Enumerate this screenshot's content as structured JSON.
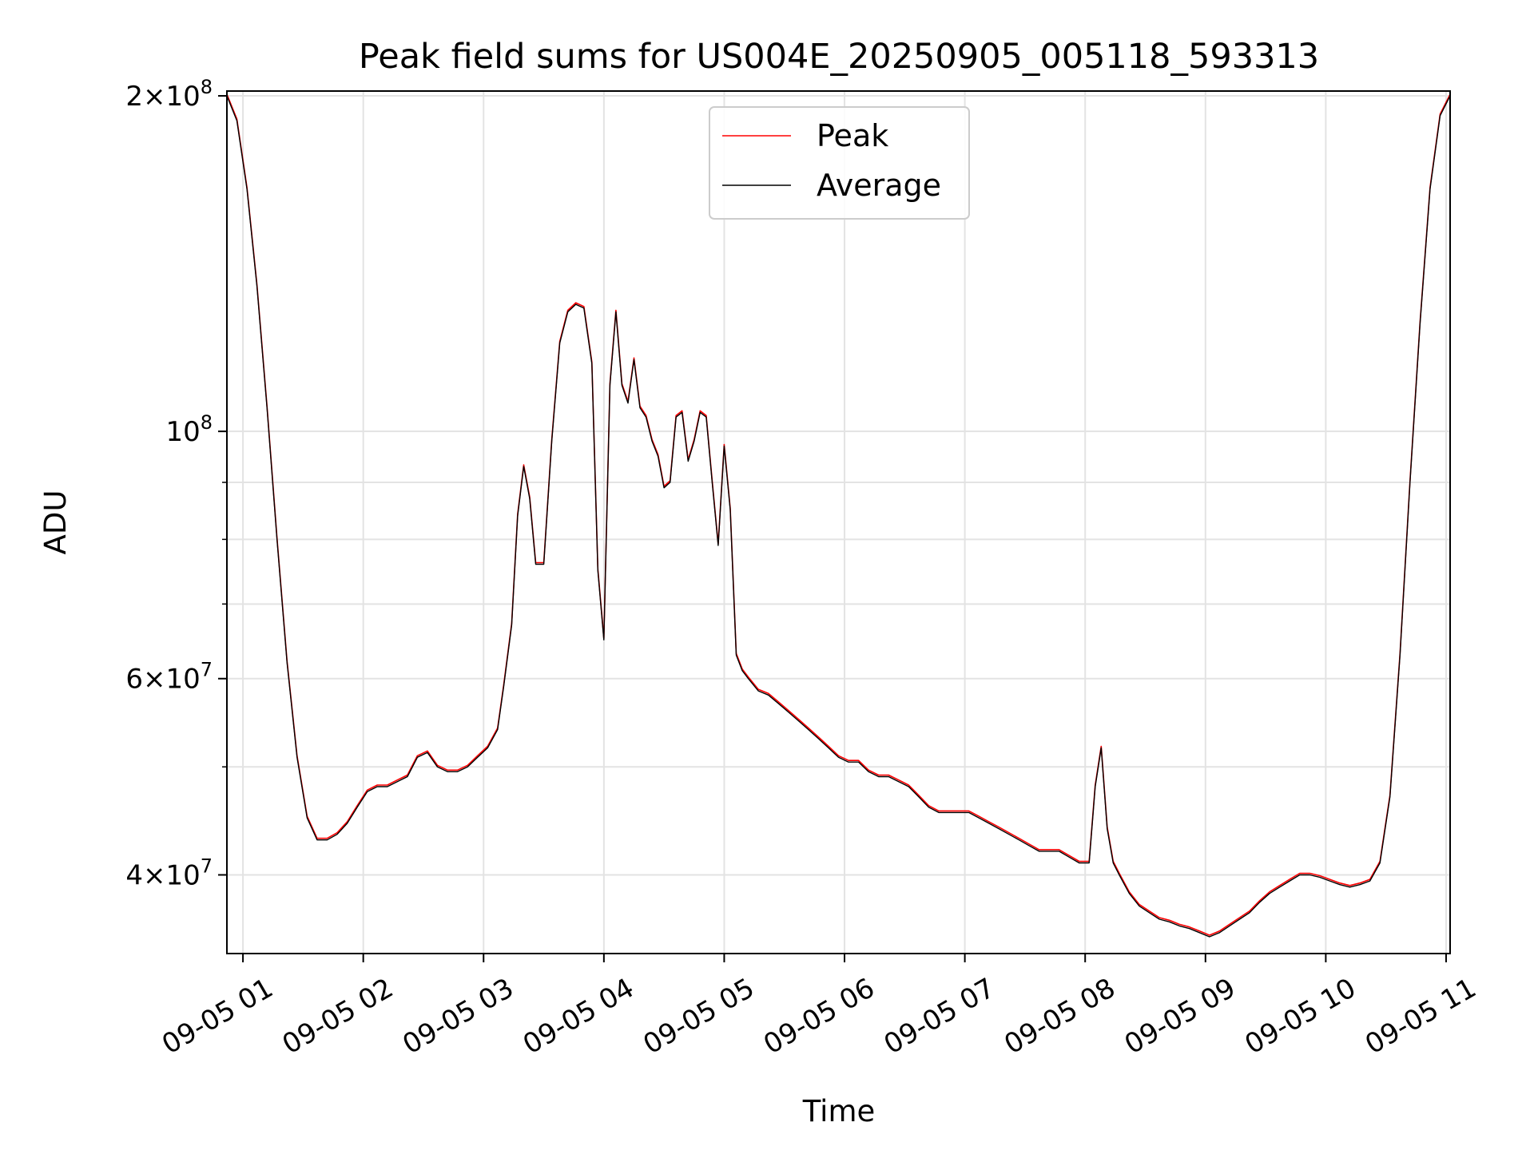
{
  "chart_data": {
    "type": "line",
    "title": "Peak field sums for US004E_20250905_005118_593313",
    "xlabel": "Time",
    "ylabel": "ADU",
    "yscale": "log",
    "ylim": [
      34000000,
      202000000
    ],
    "xlim": [
      "09-05 00:52",
      "09-05 11:02"
    ],
    "grid": true,
    "legend_position": "top-center",
    "x_ticks": [
      {
        "value": "09-05 01:00",
        "label": "09-05 01"
      },
      {
        "value": "09-05 02:00",
        "label": "09-05 02"
      },
      {
        "value": "09-05 03:00",
        "label": "09-05 03"
      },
      {
        "value": "09-05 04:00",
        "label": "09-05 04"
      },
      {
        "value": "09-05 05:00",
        "label": "09-05 05"
      },
      {
        "value": "09-05 06:00",
        "label": "09-05 06"
      },
      {
        "value": "09-05 07:00",
        "label": "09-05 07"
      },
      {
        "value": "09-05 08:00",
        "label": "09-05 08"
      },
      {
        "value": "09-05 09:00",
        "label": "09-05 09"
      },
      {
        "value": "09-05 10:00",
        "label": "09-05 10"
      },
      {
        "value": "09-05 11:00",
        "label": "09-05 11"
      }
    ],
    "y_ticks_major": [
      {
        "value": 40000000,
        "mant": "4",
        "exp": "7"
      },
      {
        "value": 60000000,
        "mant": "6",
        "exp": "7"
      },
      {
        "value": 100000000,
        "mant": "",
        "exp": "8"
      },
      {
        "value": 200000000,
        "mant": "2",
        "exp": "8"
      }
    ],
    "y_ticks_minor": [
      50000000,
      70000000,
      80000000,
      90000000
    ],
    "series": [
      {
        "name": "Peak",
        "color": "#ff0000"
      },
      {
        "name": "Average",
        "color": "#000000"
      }
    ],
    "x": [
      "09-05 00:52",
      "09-05 00:57",
      "09-05 01:02",
      "09-05 01:07",
      "09-05 01:12",
      "09-05 01:17",
      "09-05 01:22",
      "09-05 01:27",
      "09-05 01:32",
      "09-05 01:37",
      "09-05 01:42",
      "09-05 01:47",
      "09-05 01:52",
      "09-05 01:57",
      "09-05 02:02",
      "09-05 02:07",
      "09-05 02:12",
      "09-05 02:17",
      "09-05 02:22",
      "09-05 02:27",
      "09-05 02:32",
      "09-05 02:37",
      "09-05 02:42",
      "09-05 02:47",
      "09-05 02:52",
      "09-05 02:57",
      "09-05 03:02",
      "09-05 03:07",
      "09-05 03:10",
      "09-05 03:14",
      "09-05 03:17",
      "09-05 03:20",
      "09-05 03:23",
      "09-05 03:26",
      "09-05 03:30",
      "09-05 03:34",
      "09-05 03:38",
      "09-05 03:42",
      "09-05 03:46",
      "09-05 03:50",
      "09-05 03:54",
      "09-05 03:57",
      "09-05 04:00",
      "09-05 04:03",
      "09-05 04:06",
      "09-05 04:09",
      "09-05 04:12",
      "09-05 04:15",
      "09-05 04:18",
      "09-05 04:21",
      "09-05 04:24",
      "09-05 04:27",
      "09-05 04:30",
      "09-05 04:33",
      "09-05 04:36",
      "09-05 04:39",
      "09-05 04:42",
      "09-05 04:45",
      "09-05 04:48",
      "09-05 04:51",
      "09-05 04:54",
      "09-05 04:57",
      "09-05 05:00",
      "09-05 05:03",
      "09-05 05:06",
      "09-05 05:09",
      "09-05 05:12",
      "09-05 05:17",
      "09-05 05:22",
      "09-05 05:27",
      "09-05 05:32",
      "09-05 05:37",
      "09-05 05:42",
      "09-05 05:47",
      "09-05 05:52",
      "09-05 05:57",
      "09-05 06:02",
      "09-05 06:07",
      "09-05 06:12",
      "09-05 06:17",
      "09-05 06:22",
      "09-05 06:27",
      "09-05 06:32",
      "09-05 06:37",
      "09-05 06:42",
      "09-05 06:47",
      "09-05 06:52",
      "09-05 06:57",
      "09-05 07:02",
      "09-05 07:07",
      "09-05 07:12",
      "09-05 07:17",
      "09-05 07:22",
      "09-05 07:27",
      "09-05 07:32",
      "09-05 07:37",
      "09-05 07:42",
      "09-05 07:47",
      "09-05 07:52",
      "09-05 07:57",
      "09-05 08:02",
      "09-05 08:05",
      "09-05 08:08",
      "09-05 08:11",
      "09-05 08:14",
      "09-05 08:17",
      "09-05 08:22",
      "09-05 08:27",
      "09-05 08:32",
      "09-05 08:37",
      "09-05 08:42",
      "09-05 08:47",
      "09-05 08:52",
      "09-05 08:57",
      "09-05 09:02",
      "09-05 09:07",
      "09-05 09:12",
      "09-05 09:17",
      "09-05 09:22",
      "09-05 09:27",
      "09-05 09:32",
      "09-05 09:37",
      "09-05 09:42",
      "09-05 09:47",
      "09-05 09:52",
      "09-05 09:57",
      "09-05 10:02",
      "09-05 10:07",
      "09-05 10:12",
      "09-05 10:17",
      "09-05 10:22",
      "09-05 10:27",
      "09-05 10:32",
      "09-05 10:37",
      "09-05 10:42",
      "09-05 10:47",
      "09-05 10:52",
      "09-05 10:57",
      "09-05 11:02"
    ],
    "average": [
      200000000,
      190000000,
      165000000,
      135000000,
      105000000,
      80000000,
      62000000,
      51000000,
      45000000,
      43000000,
      43000000,
      43500000,
      44500000,
      46000000,
      47500000,
      48000000,
      48000000,
      48500000,
      49000000,
      51000000,
      51500000,
      50000000,
      49500000,
      49500000,
      50000000,
      51000000,
      52000000,
      54000000,
      59000000,
      67000000,
      84000000,
      93000000,
      87000000,
      76000000,
      76000000,
      98000000,
      120000000,
      128000000,
      130000000,
      129000000,
      115000000,
      75000000,
      65000000,
      110000000,
      128000000,
      110000000,
      106000000,
      116000000,
      105000000,
      103000000,
      98000000,
      95000000,
      89000000,
      90000000,
      103000000,
      104000000,
      94000000,
      98000000,
      104000000,
      103000000,
      90000000,
      79000000,
      97000000,
      85000000,
      63000000,
      61000000,
      60000000,
      58500000,
      58000000,
      57000000,
      56000000,
      55000000,
      54000000,
      53000000,
      52000000,
      51000000,
      50500000,
      50500000,
      49500000,
      49000000,
      49000000,
      48500000,
      48000000,
      47000000,
      46000000,
      45500000,
      45500000,
      45500000,
      45500000,
      45000000,
      44500000,
      44000000,
      43500000,
      43000000,
      42500000,
      42000000,
      42000000,
      42000000,
      41500000,
      41000000,
      41000000,
      48000000,
      52000000,
      44000000,
      41000000,
      40000000,
      38500000,
      37500000,
      37000000,
      36500000,
      36300000,
      36000000,
      35800000,
      35500000,
      35200000,
      35500000,
      36000000,
      36500000,
      37000000,
      37800000,
      38500000,
      39000000,
      39500000,
      40000000,
      40000000,
      39800000,
      39500000,
      39200000,
      39000000,
      39200000,
      39500000,
      41000000,
      47000000,
      63000000,
      90000000,
      125000000,
      165000000,
      192000000,
      200000000
    ]
  }
}
